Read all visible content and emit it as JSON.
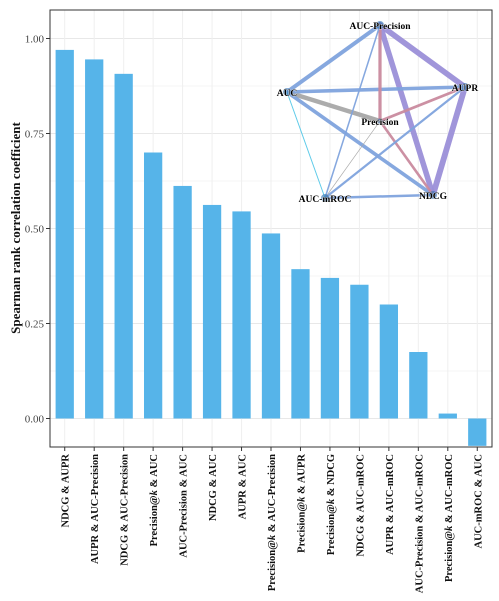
{
  "chart_data": {
    "type": "bar",
    "ylabel": "Spearman rank correlation coefficient",
    "xlabel": "",
    "title": "",
    "ylim": [
      -0.075,
      1.075
    ],
    "yticks": [
      "0.00",
      "0.25",
      "0.50",
      "0.75",
      "1.00"
    ],
    "ytick_values": [
      0,
      0.25,
      0.5,
      0.75,
      1.0
    ],
    "grid": true,
    "colors": {
      "bar": "#56b4e9",
      "grid": "#e8e8e8",
      "frame": "#333333"
    },
    "categories": [
      "NDCG & AUPR",
      "AUPR & AUC-Precision",
      "NDCG & AUC-Precision",
      "Precision@k & AUC",
      "AUC-Precision & AUC",
      "NDCG & AUC",
      "AUPR & AUC",
      "Precision@k & AUC-Precision",
      "Precision@k & AUPR",
      "Precision@k & NDCG",
      "NDCG & AUC-mROC",
      "AUPR & AUC-mROC",
      "AUC-Precision & AUC-mROC",
      "Precision@k & AUC-mROC",
      "AUC-mROC & AUC"
    ],
    "values": [
      0.97,
      0.945,
      0.907,
      0.7,
      0.612,
      0.562,
      0.545,
      0.487,
      0.393,
      0.37,
      0.352,
      0.3,
      0.175,
      0.013,
      -0.072
    ]
  },
  "network": {
    "nodes": [
      "AUC-Precision",
      "AUPR",
      "AUC",
      "Precision",
      "AUC-mROC",
      "NDCG"
    ],
    "edges": [
      {
        "a": "AUC-Precision",
        "b": "AUPR",
        "color": "#9b8fd8",
        "weight": 0.945
      },
      {
        "a": "AUPR",
        "b": "NDCG",
        "color": "#9b8fd8",
        "weight": 0.97
      },
      {
        "a": "AUC-Precision",
        "b": "NDCG",
        "color": "#9b8fd8",
        "weight": 0.907
      },
      {
        "a": "AUC",
        "b": "Precision",
        "color": "#a8a8a8",
        "weight": 0.7
      },
      {
        "a": "AUC",
        "b": "AUC-Precision",
        "color": "#7fa3dd",
        "weight": 0.612
      },
      {
        "a": "AUC",
        "b": "NDCG",
        "color": "#7fa3dd",
        "weight": 0.562
      },
      {
        "a": "AUC",
        "b": "AUPR",
        "color": "#7fa3dd",
        "weight": 0.545
      },
      {
        "a": "Precision",
        "b": "AUC-Precision",
        "color": "#c98a9e",
        "weight": 0.487
      },
      {
        "a": "Precision",
        "b": "AUPR",
        "color": "#c98a9e",
        "weight": 0.393
      },
      {
        "a": "Precision",
        "b": "NDCG",
        "color": "#c98a9e",
        "weight": 0.37
      },
      {
        "a": "NDCG",
        "b": "AUC-mROC",
        "color": "#7fa3dd",
        "weight": 0.352
      },
      {
        "a": "AUPR",
        "b": "AUC-mROC",
        "color": "#7fa3dd",
        "weight": 0.3
      },
      {
        "a": "AUC-Precision",
        "b": "AUC-mROC",
        "color": "#7fa3dd",
        "weight": 0.175
      },
      {
        "a": "Precision",
        "b": "AUC-mROC",
        "color": "#a8a8a8",
        "weight": 0.013
      },
      {
        "a": "AUC-mROC",
        "b": "AUC",
        "color": "#56c8e8",
        "weight": 0.072
      }
    ]
  }
}
